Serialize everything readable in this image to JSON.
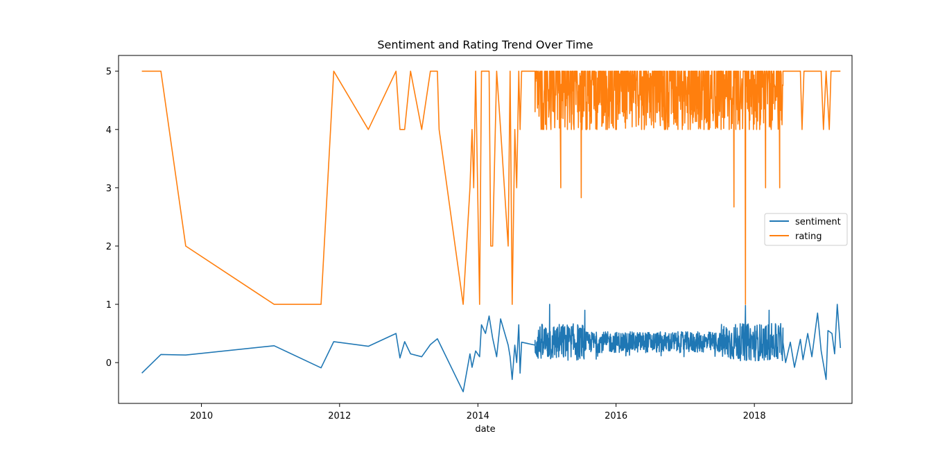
{
  "chart_data": {
    "type": "line",
    "title": "Sentiment and Rating Trend Over Time",
    "xlabel": "date",
    "ylabel": "",
    "xlim": [
      "2008-10-20",
      "2019-06-01"
    ],
    "ylim": [
      -0.7,
      5.27
    ],
    "x_ticks": [
      "2010",
      "2012",
      "2014",
      "2016",
      "2018"
    ],
    "y_ticks": [
      "0",
      "1",
      "2",
      "3",
      "4",
      "5"
    ],
    "grid": false,
    "legend_position": "center-right",
    "colors": {
      "sentiment": "#1f77b4",
      "rating": "#ff7f0e"
    },
    "series": [
      {
        "name": "sentiment",
        "color": "#1f77b4",
        "points": [
          [
            "2009-02-20",
            -0.18
          ],
          [
            "2009-06-01",
            0.14
          ],
          [
            "2009-10-10",
            0.13
          ],
          [
            "2011-01-20",
            0.29
          ],
          [
            "2011-09-25",
            -0.09
          ],
          [
            "2011-12-01",
            0.36
          ],
          [
            "2012-06-01",
            0.28
          ],
          [
            "2012-10-25",
            0.5
          ],
          [
            "2012-11-15",
            0.08
          ],
          [
            "2012-12-10",
            0.36
          ],
          [
            "2013-01-10",
            0.15
          ],
          [
            "2013-03-10",
            0.1
          ],
          [
            "2013-04-25",
            0.31
          ],
          [
            "2013-06-01",
            0.41
          ],
          [
            "2013-10-15",
            -0.5
          ],
          [
            "2013-11-20",
            0.15
          ],
          [
            "2013-12-01",
            -0.08
          ],
          [
            "2013-12-20",
            0.2
          ],
          [
            "2014-01-10",
            0.1
          ],
          [
            "2014-01-20",
            0.65
          ],
          [
            "2014-02-10",
            0.5
          ],
          [
            "2014-03-01",
            0.8
          ],
          [
            "2014-03-20",
            0.42
          ],
          [
            "2014-04-10",
            0.1
          ],
          [
            "2014-05-01",
            0.75
          ],
          [
            "2014-06-10",
            0.3
          ],
          [
            "2014-06-20",
            0.1
          ],
          [
            "2014-07-01",
            -0.29
          ],
          [
            "2014-07-15",
            0.3
          ],
          [
            "2014-07-25",
            0.0
          ],
          [
            "2014-08-05",
            0.65
          ],
          [
            "2014-08-12",
            -0.18
          ],
          [
            "2014-08-20",
            0.35
          ],
          [
            "2014-10-30",
            0.3
          ]
        ]
      },
      {
        "name": "rating",
        "color": "#ff7f0e",
        "points": [
          [
            "2009-02-20",
            5
          ],
          [
            "2009-06-01",
            5
          ],
          [
            "2009-10-10",
            2
          ],
          [
            "2011-01-20",
            1
          ],
          [
            "2011-09-25",
            1
          ],
          [
            "2011-12-01",
            5
          ],
          [
            "2012-06-01",
            4
          ],
          [
            "2012-10-25",
            5
          ],
          [
            "2012-11-15",
            4
          ],
          [
            "2012-12-10",
            4
          ],
          [
            "2013-01-10",
            5
          ],
          [
            "2013-03-10",
            4
          ],
          [
            "2013-04-25",
            5
          ],
          [
            "2013-06-01",
            5
          ],
          [
            "2013-06-10",
            4
          ],
          [
            "2013-10-15",
            1
          ],
          [
            "2013-11-20",
            3
          ],
          [
            "2013-12-01",
            4
          ],
          [
            "2013-12-10",
            3
          ],
          [
            "2013-12-20",
            5
          ],
          [
            "2014-01-10",
            1
          ],
          [
            "2014-01-20",
            5
          ],
          [
            "2014-02-10",
            5
          ],
          [
            "2014-03-01",
            5
          ],
          [
            "2014-03-10",
            2
          ],
          [
            "2014-03-20",
            2
          ],
          [
            "2014-04-10",
            5
          ],
          [
            "2014-05-01",
            4
          ],
          [
            "2014-06-10",
            2
          ],
          [
            "2014-06-20",
            5
          ],
          [
            "2014-07-01",
            1
          ],
          [
            "2014-07-15",
            4
          ],
          [
            "2014-07-25",
            3
          ],
          [
            "2014-08-05",
            5
          ],
          [
            "2014-08-12",
            4
          ],
          [
            "2014-08-20",
            5
          ],
          [
            "2014-10-30",
            5
          ]
        ],
        "dense_region": {
          "x_range": [
            "2014-10-30",
            "2018-06-01"
          ],
          "y_min": 3.2,
          "y_max": 5,
          "note_dips": [
            [
              "2015-03-15",
              3.0
            ],
            [
              "2015-07-01",
              2.83
            ],
            [
              "2017-09-15",
              2.67
            ],
            [
              "2017-11-15",
              1.0
            ],
            [
              "2018-03-01",
              3.0
            ],
            [
              "2018-05-15",
              3.0
            ]
          ]
        },
        "tail": [
          [
            "2018-06-01",
            5
          ],
          [
            "2018-09-01",
            5
          ],
          [
            "2018-09-10",
            4
          ],
          [
            "2018-09-20",
            5
          ],
          [
            "2018-12-20",
            5
          ],
          [
            "2019-01-01",
            4
          ],
          [
            "2019-01-15",
            5
          ],
          [
            "2019-02-01",
            4
          ],
          [
            "2019-02-10",
            5
          ],
          [
            "2019-04-01",
            5
          ]
        ]
      }
    ],
    "sentiment_dense_region": {
      "x_range": [
        "2014-10-30",
        "2018-06-01"
      ],
      "y_min": 0.05,
      "y_max": 0.85,
      "spikes": [
        [
          "2015-01-15",
          1.0
        ],
        [
          "2015-07-20",
          0.9
        ],
        [
          "2017-11-15",
          0.98
        ],
        [
          "2018-03-20",
          0.9
        ]
      ]
    },
    "sentiment_tail": [
      [
        "2018-06-01",
        0.35
      ],
      [
        "2018-06-15",
        0.0
      ],
      [
        "2018-07-10",
        0.35
      ],
      [
        "2018-08-01",
        -0.08
      ],
      [
        "2018-09-01",
        0.4
      ],
      [
        "2018-09-15",
        0.05
      ],
      [
        "2018-10-10",
        0.5
      ],
      [
        "2018-11-01",
        0.1
      ],
      [
        "2018-12-01",
        0.85
      ],
      [
        "2018-12-20",
        0.2
      ],
      [
        "2019-01-15",
        -0.29
      ],
      [
        "2019-01-25",
        0.55
      ],
      [
        "2019-02-15",
        0.5
      ],
      [
        "2019-03-01",
        0.15
      ],
      [
        "2019-03-15",
        1.0
      ],
      [
        "2019-04-01",
        0.25
      ]
    ]
  }
}
